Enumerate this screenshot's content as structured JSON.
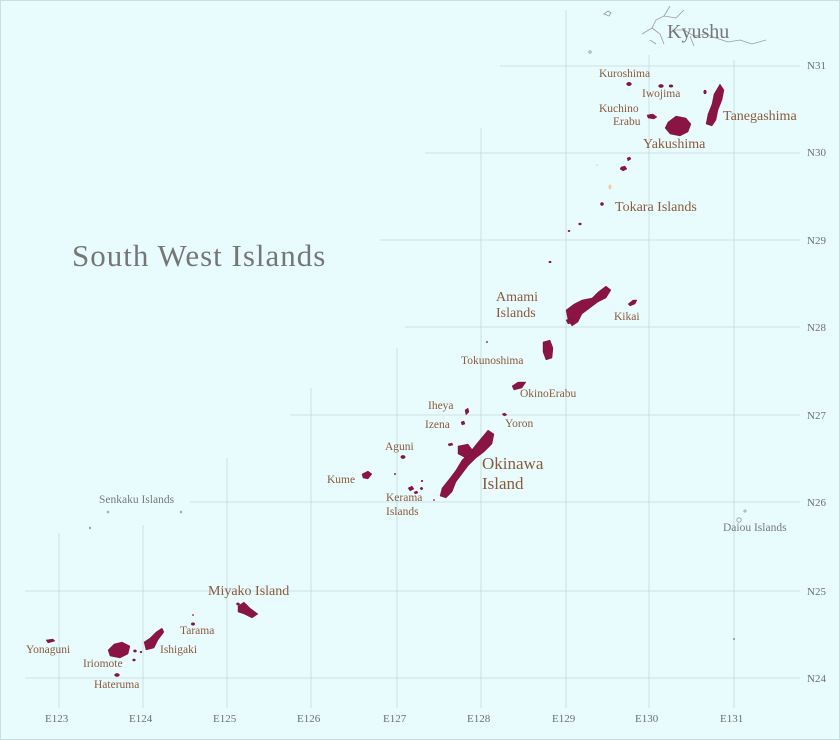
{
  "map": {
    "title": "South West Islands",
    "latitude_labels": [
      "N31",
      "N30",
      "N29",
      "N28",
      "N27",
      "N26",
      "N25",
      "N24"
    ],
    "longitude_labels": [
      "E123",
      "E124",
      "E125",
      "E126",
      "E127",
      "E128",
      "E129",
      "E130",
      "E131"
    ],
    "labels": {
      "kyushu": "Kyushu",
      "kuroshima": "Kuroshima",
      "iwojima": "Iwojima",
      "kuchino": "Kuchino",
      "erabu": "Erabu",
      "tanegashima": "Tanegashima",
      "yakushima": "Yakushima",
      "tokara": "Tokara Islands",
      "amami_1": "Amami",
      "amami_2": "Islands",
      "kikai": "Kikai",
      "tokunoshima": "Tokunoshima",
      "okinoerabu": "OkinoErabu",
      "iheya": "Iheya",
      "izena": "Izena",
      "yoron": "Yoron",
      "aguni": "Aguni",
      "kume": "Kume",
      "okinawa_1": "Okinawa",
      "okinawa_2": "Island",
      "kerama_1": "Kerama",
      "kerama_2": "Islands",
      "senkaku": "Senkaku Islands",
      "daiou": "Daiou Islands",
      "miyako": "Miyako Island",
      "tarama": "Tarama",
      "yonaguni": "Yonaguni",
      "ishigaki": "Ishigaki",
      "iriomote": "Iriomote",
      "hateruma": "Hateruma"
    },
    "colors": {
      "sea": "#e9fcfd",
      "island": "#8a1444",
      "label": "#8a5a3c",
      "grid": "#c5d9dc"
    }
  }
}
